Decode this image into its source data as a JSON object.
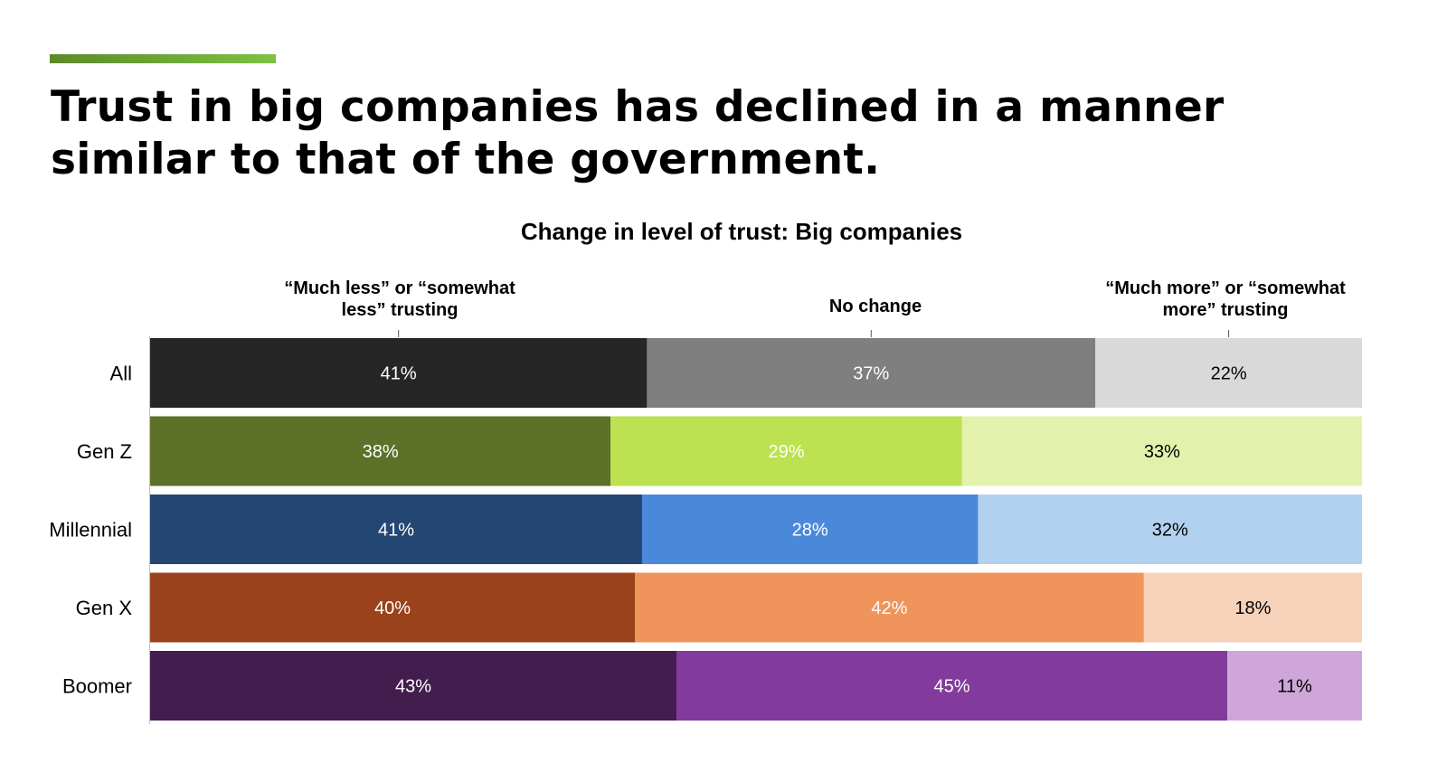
{
  "slide": {
    "headline": "Trust in big companies has declined in a manner similar to that of the government.",
    "accent_color": "#7cc242"
  },
  "chart_data": {
    "type": "bar",
    "orientation": "horizontal",
    "stacked": true,
    "title": "Change in level of trust: Big companies",
    "column_headers": [
      "“Much less” or “somewhat less” trusting",
      "No change",
      "“Much more” or “somewhat more” trusting"
    ],
    "categories": [
      "All",
      "Gen Z",
      "Millennial",
      "Gen X",
      "Boomer"
    ],
    "series": [
      {
        "values": [
          41,
          38,
          41,
          40,
          43
        ]
      },
      {
        "values": [
          37,
          29,
          28,
          42,
          45
        ]
      },
      {
        "values": [
          22,
          33,
          32,
          18,
          11
        ]
      }
    ],
    "value_format": "{v}%",
    "colors": [
      [
        "#262626",
        "#7f7f7f",
        "#d9d9d9"
      ],
      [
        "#5d7129",
        "#bce151",
        "#e2f2ac"
      ],
      [
        "#234672",
        "#4a89d9",
        "#b2d1ef"
      ],
      [
        "#99421b",
        "#ef945a",
        "#f7d2ba"
      ],
      [
        "#421d4d",
        "#823b9c",
        "#cfa6da"
      ]
    ],
    "label_colors": [
      [
        "#ffffff",
        "#ffffff",
        "#000000"
      ],
      [
        "#ffffff",
        "#ffffff",
        "#000000"
      ],
      [
        "#ffffff",
        "#ffffff",
        "#000000"
      ],
      [
        "#ffffff",
        "#ffffff",
        "#000000"
      ],
      [
        "#ffffff",
        "#ffffff",
        "#000000"
      ]
    ],
    "legend": "none",
    "grid": false
  }
}
